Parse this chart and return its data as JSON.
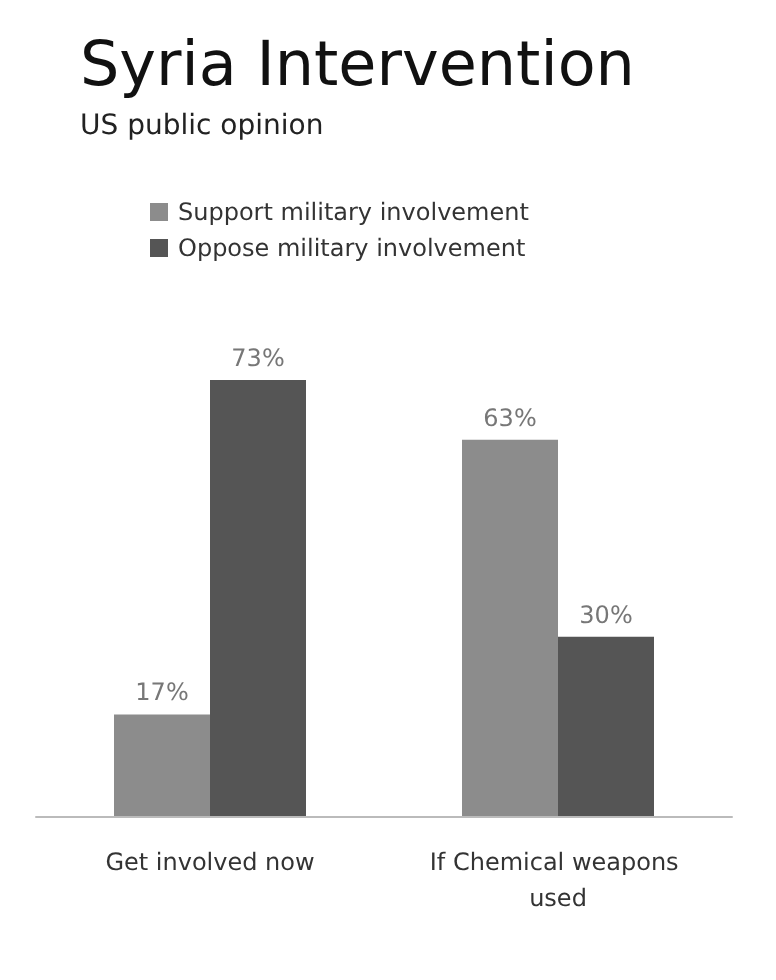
{
  "chart_data": {
    "type": "bar",
    "title": "Syria Intervention",
    "subtitle": "US public opinion",
    "categories": [
      "Get involved now",
      "If Chemical weapons used"
    ],
    "series": [
      {
        "name": "Support military involvement",
        "color": "#8c8c8c",
        "values": [
          17,
          63
        ],
        "value_labels": [
          "17%",
          "63%"
        ]
      },
      {
        "name": "Oppose military involvement",
        "color": "#555555",
        "values": [
          73,
          30
        ],
        "value_labels": [
          "73%",
          "30%"
        ]
      }
    ],
    "legend": "top left"
  }
}
